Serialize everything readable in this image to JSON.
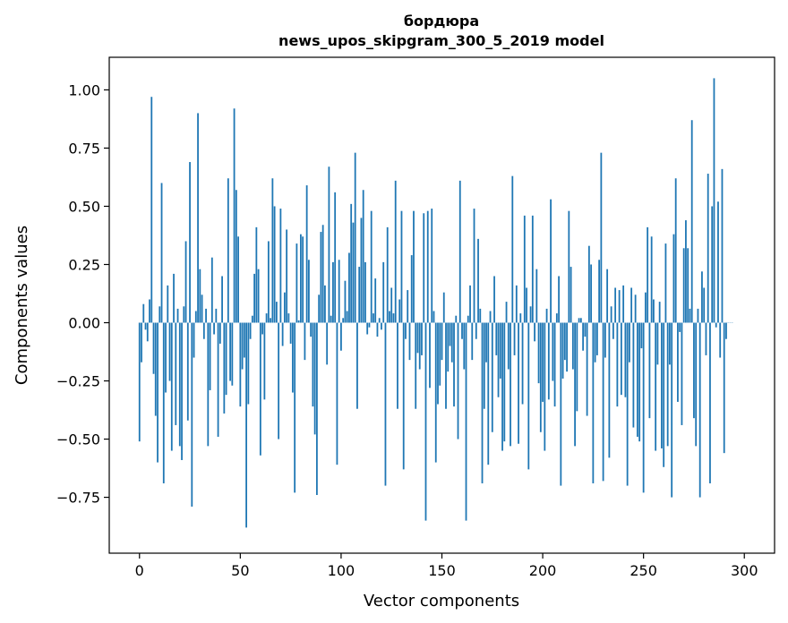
{
  "chart_data": {
    "type": "bar",
    "title": "бордюра",
    "subtitle": "news_upos_skipgram_300_5_2019 model",
    "xlabel": "Vector components",
    "ylabel": "Components values",
    "xlim": [
      -15,
      315
    ],
    "ylim": [
      -0.99,
      1.14
    ],
    "xticks": [
      0,
      50,
      100,
      150,
      200,
      250,
      300
    ],
    "xtick_labels": [
      "0",
      "50",
      "100",
      "150",
      "200",
      "250",
      "300"
    ],
    "yticks": [
      -0.75,
      -0.5,
      -0.25,
      0.0,
      0.25,
      0.5,
      0.75,
      1.0
    ],
    "ytick_labels": [
      "−0.75",
      "−0.50",
      "−0.25",
      "0.00",
      "0.25",
      "0.50",
      "0.75",
      "1.00"
    ],
    "grid": false,
    "bar_color": "#1f77b4",
    "values": [
      -0.51,
      -0.17,
      0.08,
      -0.03,
      -0.08,
      0.1,
      0.97,
      -0.22,
      -0.4,
      -0.6,
      0.07,
      0.6,
      -0.69,
      -0.3,
      0.16,
      -0.25,
      -0.55,
      0.21,
      -0.44,
      0.06,
      -0.53,
      -0.59,
      0.07,
      0.35,
      -0.42,
      0.69,
      -0.79,
      -0.15,
      0.05,
      0.9,
      0.23,
      0.12,
      -0.07,
      0.06,
      -0.53,
      -0.29,
      0.28,
      -0.05,
      0.06,
      -0.49,
      -0.09,
      0.2,
      -0.39,
      -0.31,
      0.62,
      -0.25,
      -0.27,
      0.92,
      0.57,
      0.37,
      -0.36,
      -0.2,
      -0.15,
      -0.88,
      -0.35,
      -0.07,
      0.03,
      0.21,
      0.41,
      0.23,
      -0.57,
      -0.05,
      -0.33,
      0.04,
      0.35,
      0.02,
      0.62,
      0.5,
      0.09,
      -0.5,
      0.49,
      -0.1,
      0.13,
      0.4,
      0.04,
      -0.09,
      -0.3,
      -0.73,
      0.34,
      0.01,
      0.38,
      0.37,
      -0.16,
      0.59,
      0.27,
      -0.06,
      -0.36,
      -0.48,
      -0.74,
      0.12,
      0.39,
      0.42,
      0.16,
      -0.18,
      0.67,
      0.03,
      0.26,
      0.56,
      -0.61,
      0.27,
      -0.12,
      0.02,
      0.18,
      0.05,
      0.3,
      0.51,
      0.43,
      0.73,
      -0.37,
      0.24,
      0.45,
      0.57,
      0.26,
      -0.05,
      -0.02,
      0.48,
      0.04,
      0.19,
      -0.06,
      0.02,
      -0.03,
      0.26,
      -0.7,
      0.41,
      0.05,
      0.15,
      0.04,
      0.61,
      -0.37,
      0.1,
      0.48,
      -0.63,
      -0.07,
      0.14,
      -0.16,
      0.29,
      0.48,
      -0.37,
      -0.13,
      -0.2,
      -0.14,
      0.47,
      -0.85,
      0.48,
      -0.28,
      0.49,
      0.05,
      -0.6,
      -0.35,
      -0.27,
      -0.16,
      0.13,
      -0.37,
      -0.21,
      -0.1,
      -0.17,
      -0.36,
      0.03,
      -0.5,
      0.61,
      -0.07,
      -0.2,
      -0.85,
      0.03,
      0.16,
      -0.16,
      0.49,
      -0.07,
      0.36,
      0.06,
      -0.69,
      -0.37,
      -0.17,
      -0.61,
      0.05,
      -0.47,
      0.2,
      -0.14,
      -0.32,
      -0.24,
      -0.55,
      -0.51,
      0.09,
      -0.2,
      -0.53,
      0.63,
      -0.14,
      0.16,
      -0.52,
      0.04,
      -0.35,
      0.46,
      0.15,
      -0.63,
      0.07,
      0.46,
      -0.08,
      0.23,
      -0.26,
      -0.47,
      -0.34,
      -0.55,
      0.06,
      -0.33,
      0.53,
      -0.25,
      -0.36,
      0.04,
      0.2,
      -0.7,
      -0.24,
      -0.16,
      -0.21,
      0.48,
      0.24,
      -0.2,
      -0.53,
      -0.38,
      0.02,
      0.02,
      -0.12,
      -0.06,
      -0.4,
      0.33,
      0.25,
      -0.69,
      -0.17,
      -0.14,
      0.27,
      0.73,
      -0.68,
      -0.15,
      0.23,
      -0.58,
      0.07,
      -0.07,
      0.15,
      -0.36,
      0.14,
      -0.31,
      0.16,
      -0.32,
      -0.7,
      -0.17,
      0.15,
      -0.45,
      0.12,
      -0.49,
      -0.51,
      -0.11,
      -0.73,
      0.13,
      0.41,
      -0.41,
      0.37,
      0.1,
      -0.55,
      -0.18,
      0.09,
      -0.54,
      -0.62,
      0.34,
      -0.53,
      -0.18,
      -0.75,
      0.38,
      0.62,
      -0.34,
      -0.04,
      -0.44,
      0.32,
      0.44,
      0.32,
      0.06,
      0.87,
      -0.41,
      -0.53,
      0.06,
      -0.75,
      0.22,
      0.15,
      -0.14,
      0.64,
      -0.69,
      0.5,
      1.05,
      -0.02,
      0.52,
      -0.15,
      0.66,
      -0.56,
      -0.07,
      0.0,
      0.0,
      0.0
    ]
  }
}
